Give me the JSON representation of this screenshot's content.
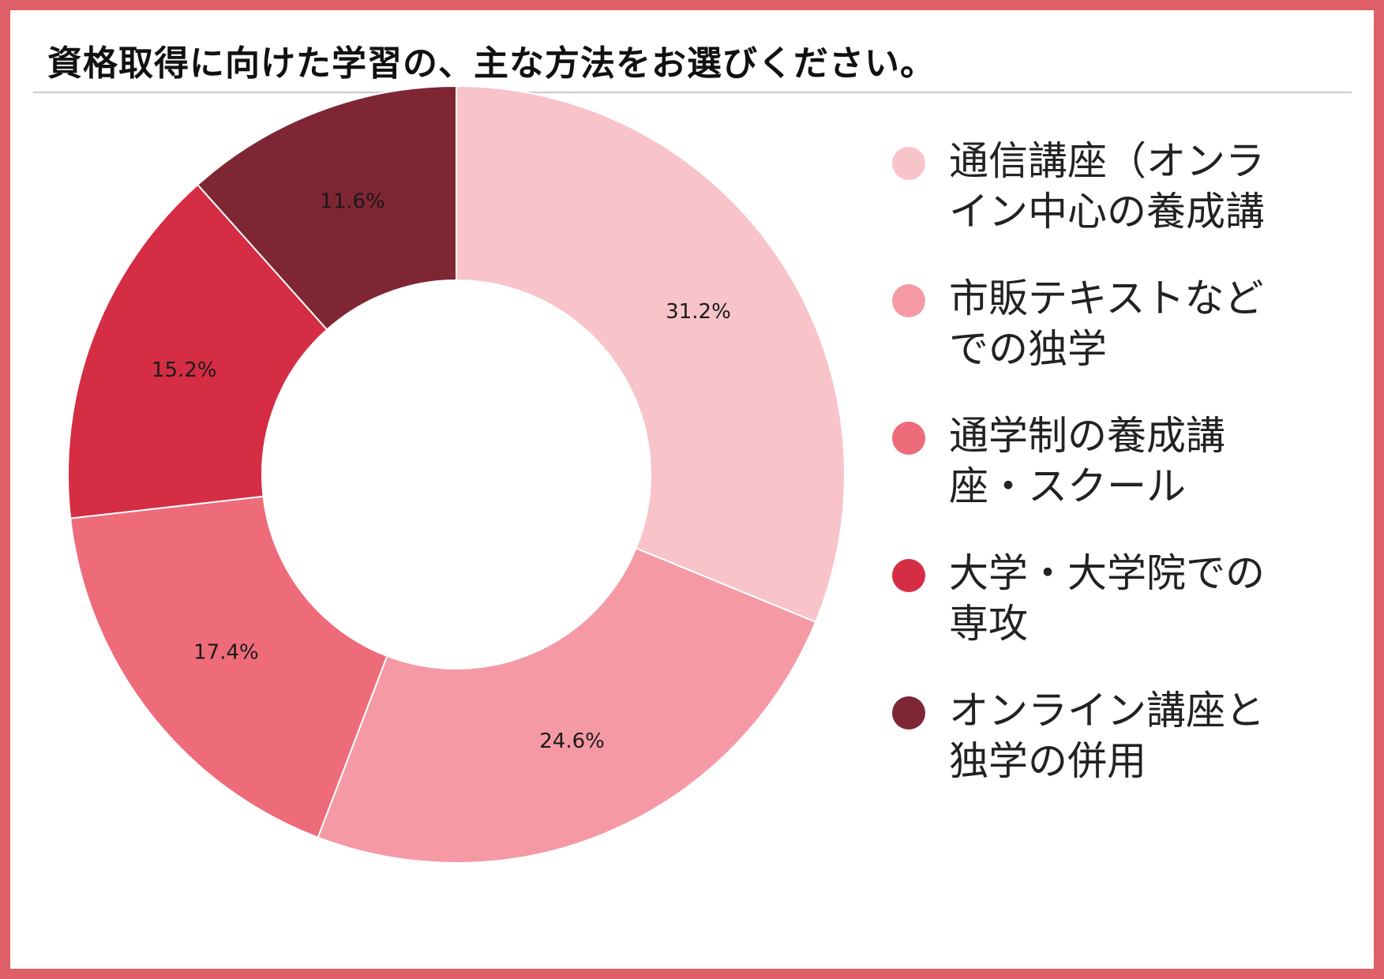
{
  "title": "資格取得に向けた学習の、主な方法をお選びください。",
  "chart_data": {
    "type": "pie",
    "variant": "donut",
    "title": "資格取得に向けた学習の、主な方法をお選びください。",
    "legend_position": "right",
    "slices": [
      {
        "label": "通信講座（オンライン中心の養成講",
        "value": 31.2,
        "value_label": "31.2%",
        "color": "#f9c3ca"
      },
      {
        "label": "市販テキストなどでの独学",
        "value": 24.6,
        "value_label": "24.6%",
        "color": "#f59aa5"
      },
      {
        "label": "通学制の養成講座・スクール",
        "value": 17.4,
        "value_label": "17.4%",
        "color": "#ee6b7a"
      },
      {
        "label": "大学・大学院での専攻",
        "value": 15.2,
        "value_label": "15.2%",
        "color": "#d52d44"
      },
      {
        "label": "オンライン講座と独学の併用",
        "value": 11.6,
        "value_label": "11.6%",
        "color": "#7e2633"
      }
    ]
  },
  "colors": {
    "frame": "#df5f68",
    "divider": "#c8c8c8"
  }
}
